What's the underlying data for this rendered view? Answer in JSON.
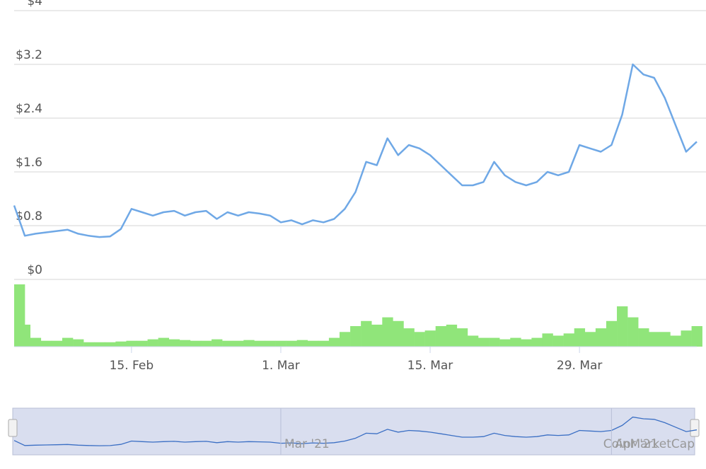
{
  "chart_data": {
    "type": "line",
    "x": [
      "2021-02-04",
      "2021-02-05",
      "2021-02-06",
      "2021-02-07",
      "2021-02-08",
      "2021-02-09",
      "2021-02-10",
      "2021-02-11",
      "2021-02-12",
      "2021-02-13",
      "2021-02-14",
      "2021-02-15",
      "2021-02-16",
      "2021-02-17",
      "2021-02-18",
      "2021-02-19",
      "2021-02-20",
      "2021-02-21",
      "2021-02-22",
      "2021-02-23",
      "2021-02-24",
      "2021-02-25",
      "2021-02-26",
      "2021-02-27",
      "2021-02-28",
      "2021-03-01",
      "2021-03-02",
      "2021-03-03",
      "2021-03-04",
      "2021-03-05",
      "2021-03-06",
      "2021-03-07",
      "2021-03-08",
      "2021-03-09",
      "2021-03-10",
      "2021-03-11",
      "2021-03-12",
      "2021-03-13",
      "2021-03-14",
      "2021-03-15",
      "2021-03-16",
      "2021-03-17",
      "2021-03-18",
      "2021-03-19",
      "2021-03-20",
      "2021-03-21",
      "2021-03-22",
      "2021-03-23",
      "2021-03-24",
      "2021-03-25",
      "2021-03-26",
      "2021-03-27",
      "2021-03-28",
      "2021-03-29",
      "2021-03-30",
      "2021-03-31",
      "2021-04-01",
      "2021-04-02",
      "2021-04-03",
      "2021-04-04",
      "2021-04-05",
      "2021-04-06",
      "2021-04-07",
      "2021-04-08",
      "2021-04-09"
    ],
    "series": [
      {
        "color": "#6fa8e6",
        "values": [
          1.1,
          0.65,
          0.68,
          0.7,
          0.72,
          0.74,
          0.68,
          0.65,
          0.63,
          0.64,
          0.75,
          1.05,
          1.0,
          0.95,
          1.0,
          1.02,
          0.95,
          1.0,
          1.02,
          0.9,
          1.0,
          0.95,
          1.0,
          0.98,
          0.95,
          0.85,
          0.88,
          0.82,
          0.88,
          0.85,
          0.9,
          1.05,
          1.3,
          1.75,
          1.7,
          2.1,
          1.85,
          2.0,
          1.95,
          1.85,
          1.7,
          1.55,
          1.4,
          1.4,
          1.45,
          1.75,
          1.55,
          1.45,
          1.4,
          1.45,
          1.6,
          1.55,
          1.6,
          2.0,
          1.95,
          1.9,
          2.0,
          2.45,
          3.2,
          3.05,
          3.0,
          2.7,
          2.3,
          1.9,
          2.05
        ]
      }
    ],
    "volume": {
      "color": "#90e57a",
      "values": [
        85,
        30,
        12,
        8,
        8,
        12,
        10,
        6,
        6,
        6,
        7,
        8,
        8,
        10,
        12,
        10,
        9,
        8,
        8,
        10,
        8,
        8,
        9,
        8,
        8,
        8,
        8,
        9,
        8,
        8,
        12,
        20,
        28,
        35,
        30,
        40,
        35,
        25,
        20,
        22,
        28,
        30,
        25,
        15,
        12,
        12,
        10,
        12,
        10,
        12,
        18,
        15,
        18,
        25,
        20,
        25,
        35,
        55,
        40,
        25,
        20,
        20,
        15,
        22,
        28
      ]
    },
    "xlim": [
      "2021-02-04",
      "2021-04-09"
    ],
    "xticks": [
      {
        "value": "2021-02-15",
        "label": "15. Feb"
      },
      {
        "value": "2021-03-01",
        "label": "1. Mar"
      },
      {
        "value": "2021-03-15",
        "label": "15. Mar"
      },
      {
        "value": "2021-03-29",
        "label": "29. Mar"
      }
    ],
    "ylim": [
      0,
      4
    ],
    "yticks": [
      {
        "value": 0,
        "label": "$0"
      },
      {
        "value": 0.8,
        "label": "$0.8"
      },
      {
        "value": 1.6,
        "label": "$1.6"
      },
      {
        "value": 2.4,
        "label": "$2.4"
      },
      {
        "value": 3.2,
        "label": "$3.2"
      },
      {
        "value": 4,
        "label": "$4"
      }
    ],
    "grid": true,
    "navigator": {
      "xticks": [
        {
          "value": "2021-03-01",
          "label": "Mar '21"
        },
        {
          "value": "2021-04-01",
          "label": "Apr '21"
        }
      ],
      "credit": "CoinMarketCap"
    }
  }
}
